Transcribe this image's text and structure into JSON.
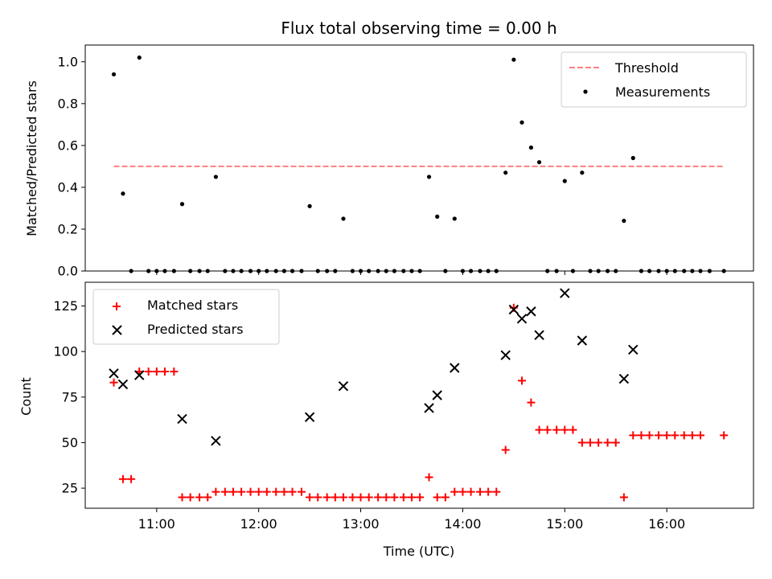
{
  "chart_data": [
    {
      "type": "scatter",
      "title": "Flux total observing time = 0.00 h",
      "xlabel": "",
      "ylabel": "Matched/Predicted stars",
      "xlim": [
        10.3,
        16.85
      ],
      "ylim": [
        0.0,
        1.08
      ],
      "xticks": [
        11,
        12,
        13,
        14,
        15,
        16
      ],
      "xtick_labels": [
        "",
        "",
        "",
        "",
        "",
        ""
      ],
      "yticks": [
        0.0,
        0.2,
        0.4,
        0.6,
        0.8,
        1.0
      ],
      "ytick_labels": [
        "0.0",
        "0.2",
        "0.4",
        "0.6",
        "0.8",
        "1.0"
      ],
      "legend_position": "top-right",
      "series": [
        {
          "name": "Threshold",
          "kind": "dashed-line",
          "color": "#ff7f7f",
          "x": [
            10.58,
            16.56
          ],
          "y": [
            0.5,
            0.5
          ]
        },
        {
          "name": "Measurements",
          "kind": "dots",
          "color": "#000000",
          "x": [
            10.58,
            10.67,
            10.75,
            10.83,
            10.92,
            11.0,
            11.08,
            11.17,
            11.25,
            11.33,
            11.42,
            11.5,
            11.58,
            11.67,
            11.75,
            11.83,
            11.92,
            12.0,
            12.08,
            12.17,
            12.25,
            12.33,
            12.42,
            12.5,
            12.58,
            12.67,
            12.75,
            12.83,
            12.92,
            13.0,
            13.08,
            13.17,
            13.25,
            13.33,
            13.42,
            13.5,
            13.58,
            13.67,
            13.75,
            13.83,
            13.92,
            14.0,
            14.08,
            14.17,
            14.25,
            14.33,
            14.42,
            14.5,
            14.58,
            14.67,
            14.75,
            14.83,
            14.92,
            15.0,
            15.08,
            15.17,
            15.25,
            15.33,
            15.42,
            15.5,
            15.58,
            15.67,
            15.75,
            15.83,
            15.92,
            16.0,
            16.08,
            16.17,
            16.25,
            16.33,
            16.42,
            16.56
          ],
          "y": [
            0.94,
            0.37,
            0.0,
            1.02,
            0.0,
            0.0,
            0.0,
            0.0,
            0.32,
            0.0,
            0.0,
            0.0,
            0.45,
            0.0,
            0.0,
            0.0,
            0.0,
            0.0,
            0.0,
            0.0,
            0.0,
            0.0,
            0.0,
            0.31,
            0.0,
            0.0,
            0.0,
            0.25,
            0.0,
            0.0,
            0.0,
            0.0,
            0.0,
            0.0,
            0.0,
            0.0,
            0.0,
            0.45,
            0.26,
            0.0,
            0.25,
            0.0,
            0.0,
            0.0,
            0.0,
            0.0,
            0.47,
            1.01,
            0.71,
            0.59,
            0.52,
            0.0,
            0.0,
            0.43,
            0.0,
            0.47,
            0.0,
            0.0,
            0.0,
            0.0,
            0.24,
            0.54,
            0.0,
            0.0,
            0.0,
            0.0,
            0.0,
            0.0,
            0.0,
            0.0,
            0.0,
            0.0
          ]
        }
      ]
    },
    {
      "type": "scatter",
      "title": "",
      "xlabel": "Time (UTC)",
      "ylabel": "Count",
      "xlim": [
        10.3,
        16.85
      ],
      "ylim": [
        14,
        138
      ],
      "xticks": [
        11,
        12,
        13,
        14,
        15,
        16
      ],
      "xtick_labels": [
        "11:00",
        "12:00",
        "13:00",
        "14:00",
        "15:00",
        "16:00"
      ],
      "yticks": [
        25,
        50,
        75,
        100,
        125
      ],
      "ytick_labels": [
        "25",
        "50",
        "75",
        "100",
        "125"
      ],
      "legend_position": "top-left",
      "series": [
        {
          "name": "Matched stars",
          "kind": "plus",
          "color": "#ff0000",
          "x": [
            10.58,
            10.67,
            10.75,
            10.83,
            10.92,
            11.0,
            11.08,
            11.17,
            11.25,
            11.33,
            11.42,
            11.5,
            11.58,
            11.67,
            11.75,
            11.83,
            11.92,
            12.0,
            12.08,
            12.17,
            12.25,
            12.33,
            12.42,
            12.5,
            12.58,
            12.67,
            12.75,
            12.83,
            12.92,
            13.0,
            13.08,
            13.17,
            13.25,
            13.33,
            13.42,
            13.5,
            13.58,
            13.67,
            13.75,
            13.83,
            13.92,
            14.0,
            14.08,
            14.17,
            14.25,
            14.33,
            14.42,
            14.5,
            14.58,
            14.67,
            14.75,
            14.83,
            14.92,
            15.0,
            15.08,
            15.17,
            15.25,
            15.33,
            15.42,
            15.5,
            15.58,
            15.67,
            15.75,
            15.83,
            15.92,
            16.0,
            16.08,
            16.17,
            16.25,
            16.33,
            16.56
          ],
          "y": [
            83,
            30,
            30,
            89,
            89,
            89,
            89,
            89,
            20,
            20,
            20,
            20,
            23,
            23,
            23,
            23,
            23,
            23,
            23,
            23,
            23,
            23,
            23,
            20,
            20,
            20,
            20,
            20,
            20,
            20,
            20,
            20,
            20,
            20,
            20,
            20,
            20,
            31,
            20,
            20,
            23,
            23,
            23,
            23,
            23,
            23,
            46,
            124,
            84,
            72,
            57,
            57,
            57,
            57,
            57,
            50,
            50,
            50,
            50,
            50,
            20,
            54,
            54,
            54,
            54,
            54,
            54,
            54,
            54,
            54,
            54
          ]
        },
        {
          "name": "Predicted stars",
          "kind": "x",
          "color": "#000000",
          "x": [
            10.58,
            10.67,
            10.83,
            11.25,
            11.58,
            12.5,
            12.83,
            13.67,
            13.75,
            13.92,
            14.42,
            14.5,
            14.58,
            14.67,
            14.75,
            15.0,
            15.17,
            15.58,
            15.67
          ],
          "y": [
            88,
            82,
            87,
            63,
            51,
            64,
            81,
            69,
            76,
            91,
            98,
            123,
            118,
            122,
            109,
            132,
            106,
            85,
            101
          ]
        }
      ]
    }
  ]
}
